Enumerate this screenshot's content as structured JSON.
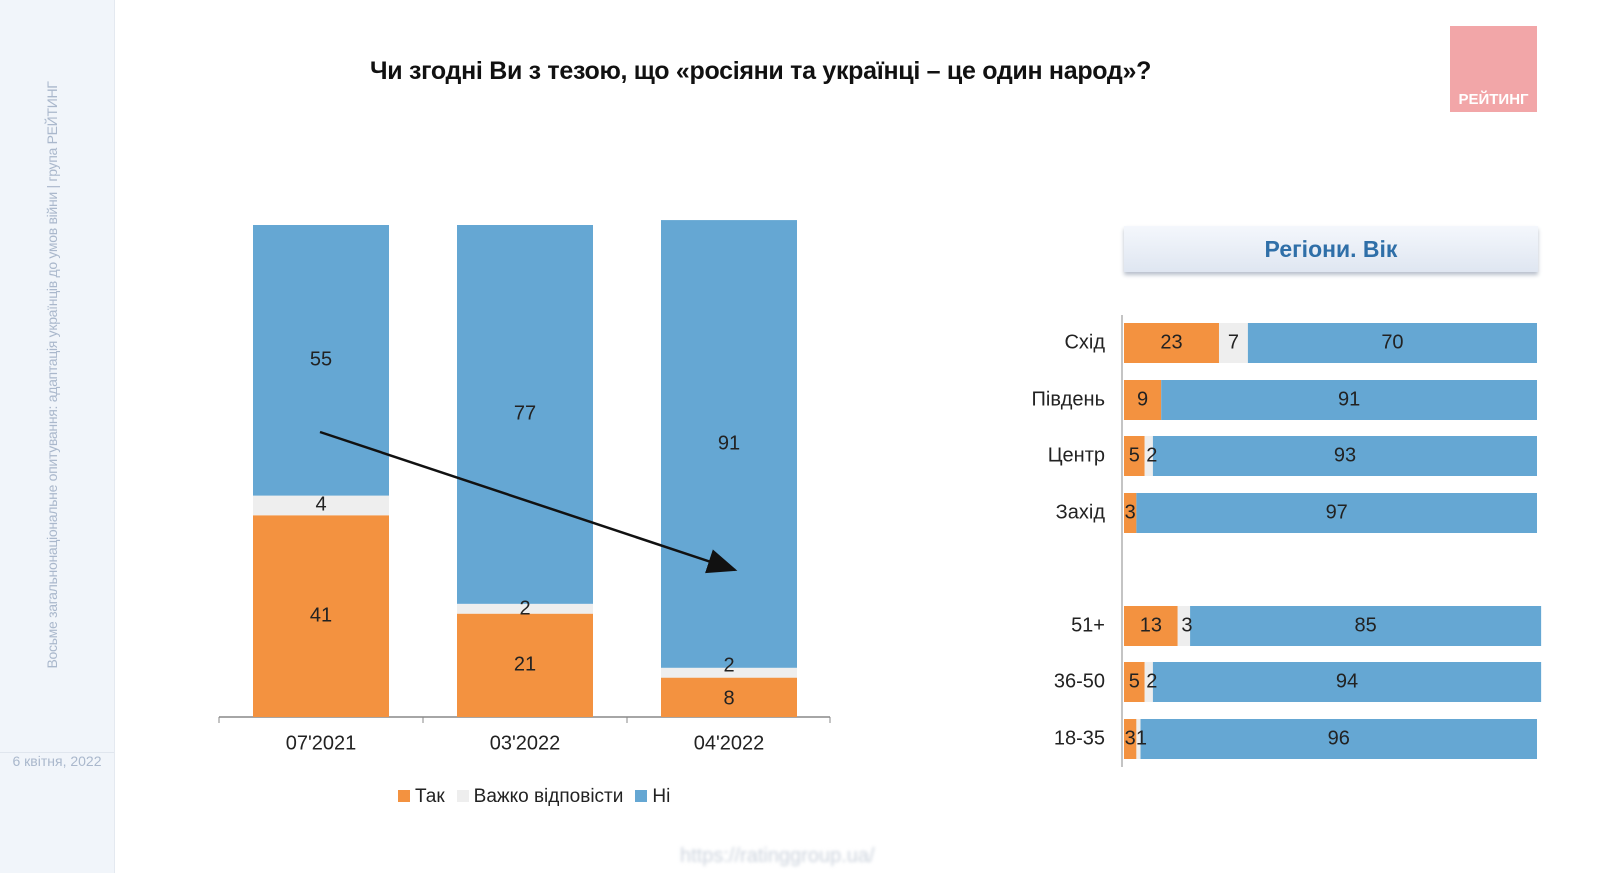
{
  "sidebar": {
    "vertical_text": "Восьме загальнонаціональне опитування: адаптація українців до умов війни | група РЕЙТИНГ",
    "date": "6 квітня, 2022"
  },
  "logo_text": "РЕЙТИНГ",
  "footer_url": "https://ratinggroup.ua/",
  "colors": {
    "yes": "#f39240",
    "hard": "#eeeeee",
    "no": "#65a7d3"
  },
  "chart_data": [
    {
      "type": "bar",
      "stacked": true,
      "orientation": "vertical",
      "title": "Чи згодні Ви з тезою, що «росіяни та українці – це один народ»?",
      "categories": [
        "07'2021",
        "03'2022",
        "04'2022"
      ],
      "ylim": [
        0,
        100
      ],
      "series": [
        {
          "name": "Так",
          "values": [
            41,
            21,
            8
          ]
        },
        {
          "name": "Важко відповісти",
          "values": [
            4,
            2,
            2
          ]
        },
        {
          "name": "Ні",
          "values": [
            55,
            77,
            91
          ]
        }
      ],
      "annotation": "trend arrow downward",
      "legend": "bottom"
    },
    {
      "type": "bar",
      "stacked": true,
      "orientation": "horizontal",
      "title": "Регіони. Вік",
      "categories": [
        "Схід",
        "Південь",
        "Центр",
        "Захід",
        "51+",
        "36-50",
        "18-35"
      ],
      "xlim": [
        0,
        100
      ],
      "series": [
        {
          "name": "Так",
          "values": [
            23,
            9,
            5,
            3,
            13,
            5,
            3
          ]
        },
        {
          "name": "Важко відповісти",
          "values": [
            7,
            0,
            2,
            0,
            3,
            2,
            1
          ]
        },
        {
          "name": "Ні",
          "values": [
            70,
            91,
            93,
            97,
            85,
            94,
            96
          ]
        }
      ]
    }
  ]
}
